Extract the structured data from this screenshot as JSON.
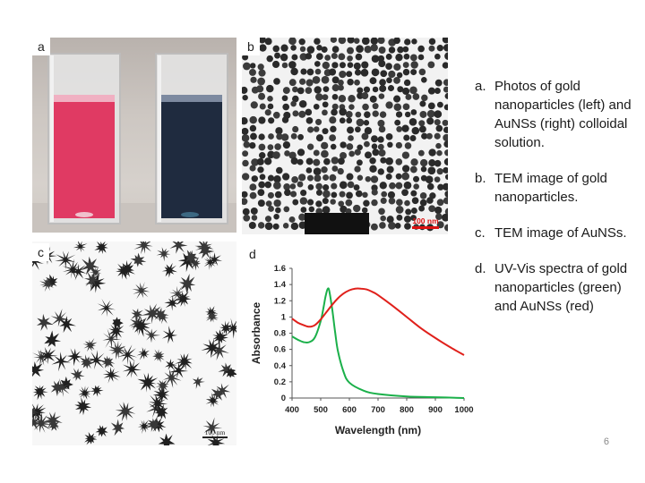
{
  "slide": {
    "page_number": "6"
  },
  "panels": {
    "a": {
      "tag": "a"
    },
    "b": {
      "tag": "b",
      "scale_bar": "100 nm"
    },
    "c": {
      "tag": "c",
      "scale_bar": "100 nm"
    },
    "d": {
      "tag": "d"
    }
  },
  "notes": [
    {
      "letter": "a.",
      "text": "Photos of gold nanoparticles (left) and AuNSs (right) colloidal solution."
    },
    {
      "letter": "b.",
      "text": "TEM image of gold nanoparticles."
    },
    {
      "letter": "c.",
      "text": "TEM image of AuNSs."
    },
    {
      "letter": "d.",
      "text": "UV-Vis spectra of gold nanoparticles (green) and AuNSs (red)"
    }
  ],
  "colors": {
    "gold_nanoparticles": "#1bb04a",
    "aunss": "#e0201b",
    "gold_solution": "#e03a63",
    "aunss_solution": "#1f2b3f"
  },
  "chart_data": {
    "type": "line",
    "title": "",
    "xlabel": "Wavelength (nm)",
    "ylabel": "Absorbance",
    "xlim": [
      400,
      1000
    ],
    "ylim": [
      0,
      1.6
    ],
    "xticks": [
      "400",
      "500",
      "600",
      "700",
      "800",
      "900",
      "1000"
    ],
    "yticks": [
      "0",
      "0.2",
      "0.4",
      "0.6",
      "0.8",
      "1",
      "1.2",
      "1.4",
      "1.6"
    ],
    "grid": false,
    "series": [
      {
        "color": "#1bb04a",
        "x": [
          400,
          420,
          440,
          460,
          480,
          500,
          510,
          515,
          520,
          525,
          530,
          540,
          550,
          560,
          580,
          600,
          650,
          700,
          800,
          900,
          1000
        ],
        "y": [
          0.76,
          0.72,
          0.69,
          0.69,
          0.75,
          0.95,
          1.12,
          1.22,
          1.3,
          1.35,
          1.32,
          1.1,
          0.82,
          0.58,
          0.32,
          0.19,
          0.09,
          0.05,
          0.02,
          0.01,
          0.0
        ]
      },
      {
        "color": "#e0201b",
        "x": [
          400,
          420,
          440,
          460,
          480,
          500,
          520,
          540,
          560,
          580,
          600,
          620,
          640,
          660,
          680,
          700,
          750,
          800,
          850,
          900,
          950,
          1000
        ],
        "y": [
          0.98,
          0.93,
          0.9,
          0.88,
          0.9,
          0.97,
          1.06,
          1.15,
          1.23,
          1.29,
          1.33,
          1.35,
          1.35,
          1.34,
          1.31,
          1.27,
          1.14,
          1.0,
          0.86,
          0.74,
          0.63,
          0.53
        ]
      }
    ]
  }
}
